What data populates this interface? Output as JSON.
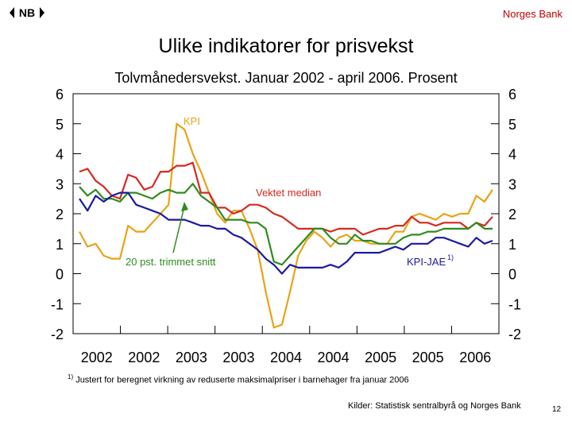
{
  "header": {
    "logo_text": "NB",
    "org": "Norges Bank"
  },
  "title": "Ulike indikatorer for prisvekst",
  "subtitle": "Tolvmånedersvekst. Januar 2002 - april 2006. Prosent",
  "footnote": {
    "marker": "1)",
    "text": "Justert for beregnet virkning av reduserte maksimalpriser i barnehager fra januar 2006"
  },
  "sources": "Kilder: Statistisk sentralbyrå og Norges Bank",
  "page_number": "12",
  "colors": {
    "kpi": "#e8a317",
    "median": "#d42a20",
    "trimmed": "#2e8b1e",
    "kpi_jae": "#1a1aa0"
  },
  "chart_data": {
    "type": "line",
    "ylim": [
      -2,
      6
    ],
    "yticks": [
      "-2",
      "-1",
      "0",
      "1",
      "2",
      "3",
      "4",
      "5",
      "6"
    ],
    "xtick_labels": [
      "2002",
      "2002",
      "2003",
      "2003",
      "2004",
      "2004",
      "2005",
      "2005",
      "2006"
    ],
    "x_start": "2002-01",
    "x_end": "2006-04",
    "annotations": [
      {
        "text": "KPI",
        "series": "KPI"
      },
      {
        "text": "Vektet median",
        "series": "Vektet median"
      },
      {
        "text": "20 pst. trimmet snitt",
        "series": "20 pst. trimmet snitt"
      },
      {
        "text": "KPI-JAE",
        "sup": "1)",
        "series": "KPI-JAE"
      }
    ],
    "series": [
      {
        "name": "KPI",
        "values": [
          1.4,
          0.9,
          1.0,
          0.6,
          0.5,
          0.5,
          1.6,
          1.4,
          1.4,
          1.7,
          2.0,
          2.3,
          5.0,
          4.8,
          4.0,
          3.4,
          2.7,
          2.0,
          1.7,
          2.1,
          2.1,
          1.5,
          0.8,
          -0.6,
          -1.8,
          -1.7,
          -0.6,
          0.6,
          1.1,
          1.4,
          1.2,
          0.9,
          1.2,
          1.3,
          1.1,
          1.1,
          1.0,
          1.0,
          1.0,
          1.4,
          1.4,
          1.9,
          2.0,
          1.9,
          1.8,
          2.0,
          1.9,
          2.0,
          2.0,
          2.6,
          2.4,
          2.8
        ]
      },
      {
        "name": "Vektet median",
        "values": [
          3.4,
          3.5,
          3.1,
          2.9,
          2.6,
          2.5,
          3.3,
          3.2,
          2.8,
          2.9,
          3.4,
          3.4,
          3.6,
          3.6,
          3.7,
          2.7,
          2.7,
          2.2,
          2.2,
          2.0,
          2.1,
          2.3,
          2.3,
          2.2,
          2.0,
          1.9,
          1.7,
          1.5,
          1.5,
          1.5,
          1.5,
          1.4,
          1.5,
          1.5,
          1.5,
          1.3,
          1.4,
          1.5,
          1.5,
          1.6,
          1.6,
          1.9,
          1.7,
          1.7,
          1.6,
          1.7,
          1.7,
          1.7,
          1.5,
          1.7,
          1.6,
          1.9
        ]
      },
      {
        "name": "20 pst. trimmet snitt",
        "values": [
          2.9,
          2.6,
          2.8,
          2.5,
          2.5,
          2.4,
          2.7,
          2.7,
          2.6,
          2.5,
          2.7,
          2.8,
          2.7,
          2.7,
          3.0,
          2.6,
          2.4,
          2.2,
          1.8,
          1.8,
          1.8,
          1.7,
          1.7,
          1.5,
          0.4,
          0.3,
          0.6,
          0.9,
          1.2,
          1.5,
          1.5,
          1.2,
          1.0,
          1.0,
          1.3,
          1.1,
          1.1,
          1.0,
          1.0,
          1.0,
          1.2,
          1.3,
          1.3,
          1.4,
          1.4,
          1.5,
          1.5,
          1.5,
          1.5,
          1.7,
          1.5,
          1.5
        ]
      },
      {
        "name": "KPI-JAE",
        "values": [
          2.5,
          2.1,
          2.6,
          2.4,
          2.6,
          2.7,
          2.7,
          2.3,
          2.2,
          2.1,
          2.0,
          1.8,
          1.8,
          1.8,
          1.7,
          1.6,
          1.6,
          1.5,
          1.5,
          1.3,
          1.2,
          1.0,
          0.8,
          0.5,
          0.3,
          0.0,
          0.3,
          0.2,
          0.2,
          0.2,
          0.2,
          0.3,
          0.2,
          0.4,
          0.7,
          0.7,
          0.7,
          0.7,
          0.8,
          0.9,
          0.8,
          1.0,
          1.0,
          1.0,
          1.2,
          1.2,
          1.1,
          1.0,
          0.9,
          1.2,
          1.0,
          1.1
        ]
      }
    ]
  }
}
